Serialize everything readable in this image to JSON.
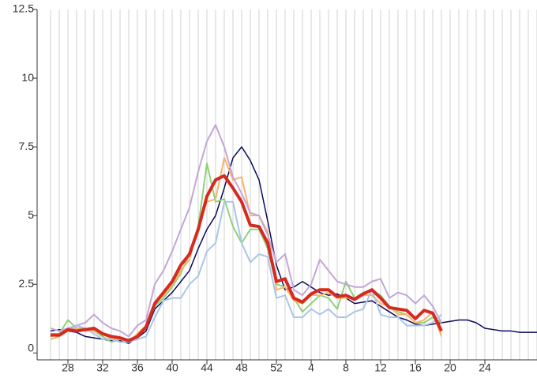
{
  "chart_data": {
    "type": "line",
    "categories": [
      null,
      null,
      28,
      null,
      null,
      null,
      32,
      null,
      null,
      null,
      36,
      null,
      null,
      null,
      40,
      null,
      null,
      null,
      44,
      null,
      null,
      null,
      48,
      null,
      null,
      null,
      52,
      null,
      null,
      null,
      4,
      null,
      null,
      null,
      8,
      null,
      null,
      null,
      12,
      null,
      null,
      null,
      16,
      null,
      null,
      null,
      20,
      null,
      null,
      null,
      24,
      null,
      null,
      null,
      null,
      null,
      null
    ],
    "ylim": [
      -0.25,
      12.5
    ],
    "yticks": [
      0,
      {
        "value": 2.5,
        "label": "2.5"
      },
      5,
      {
        "value": 7.5,
        "label": "7.5"
      },
      10,
      {
        "value": 12.5,
        "label": "12.5"
      }
    ],
    "grid": true,
    "series": [
      {
        "color": "#0a0a5c",
        "width": 1.5,
        "values": [
          0.8,
          0.85,
          0.8,
          0.75,
          0.6,
          0.55,
          0.5,
          0.45,
          0.45,
          0.35,
          0.55,
          0.8,
          1.6,
          1.9,
          2.2,
          2.6,
          3.0,
          3.8,
          4.5,
          5.0,
          6.0,
          7.1,
          7.5,
          7.0,
          6.3,
          4.8,
          3.2,
          2.3,
          2.4,
          2.6,
          2.4,
          2.2,
          2.1,
          2.15,
          2.0,
          1.8,
          1.85,
          1.9,
          1.7,
          1.5,
          1.3,
          1.2,
          1.05,
          1.0,
          1.05,
          1.1,
          1.15,
          1.2,
          1.2,
          1.1,
          0.9,
          0.85,
          0.8,
          0.8,
          0.75,
          0.75,
          0.75
        ]
      },
      {
        "color": "#8fd17a",
        "width": 2,
        "values": [
          0.6,
          0.7,
          1.2,
          0.9,
          0.9,
          0.8,
          0.6,
          0.4,
          0.5,
          0.5,
          0.6,
          0.9,
          1.7,
          2.0,
          2.4,
          2.9,
          3.6,
          4.6,
          6.9,
          5.5,
          5.6,
          4.6,
          4.0,
          4.5,
          4.5,
          3.8,
          2.5,
          2.4,
          2.0,
          1.5,
          1.8,
          2.1,
          2.0,
          1.6,
          2.6,
          2.0,
          2.2,
          2.3,
          2.1,
          1.7,
          1.5,
          1.4,
          1.1,
          1.1,
          1.3,
          1.1,
          null,
          null,
          null,
          null,
          null,
          null,
          null,
          null,
          null,
          null,
          null
        ]
      },
      {
        "color": "#fbb36b",
        "width": 2,
        "values": [
          0.5,
          0.6,
          0.8,
          0.9,
          0.8,
          0.8,
          0.7,
          0.5,
          0.5,
          0.4,
          0.7,
          1.0,
          1.8,
          2.1,
          2.5,
          3.0,
          3.4,
          4.6,
          5.5,
          5.6,
          7.1,
          6.3,
          6.4,
          5.0,
          5.0,
          4.4,
          2.3,
          2.4,
          1.9,
          1.8,
          2.1,
          2.1,
          2.2,
          2.0,
          2.0,
          2.0,
          2.1,
          2.1,
          1.8,
          1.7,
          1.4,
          1.4,
          1.1,
          1.2,
          1.5,
          0.6,
          null,
          null,
          null,
          null,
          null,
          null,
          null,
          null,
          null,
          null,
          null
        ]
      },
      {
        "color": "#c4a5d8",
        "width": 2,
        "values": [
          0.9,
          0.8,
          0.9,
          1.0,
          1.1,
          1.4,
          1.1,
          0.9,
          0.8,
          0.6,
          1.0,
          1.2,
          2.5,
          3.0,
          3.7,
          4.5,
          5.3,
          6.6,
          7.7,
          8.3,
          7.5,
          6.4,
          5.8,
          5.1,
          5.0,
          4.3,
          3.3,
          3.6,
          2.3,
          2.1,
          2.5,
          3.4,
          3.0,
          2.6,
          2.5,
          2.4,
          2.4,
          2.6,
          2.7,
          2.0,
          2.2,
          2.1,
          1.8,
          2.1,
          1.7,
          1.1,
          null,
          null,
          null,
          null,
          null,
          null,
          null,
          null,
          null,
          null,
          null
        ]
      },
      {
        "color": "#a9c5e8",
        "width": 2,
        "values": [
          0.7,
          0.7,
          0.8,
          1.0,
          0.9,
          0.7,
          0.5,
          0.5,
          0.4,
          0.4,
          0.5,
          0.6,
          1.3,
          1.9,
          2.0,
          2.0,
          2.5,
          2.8,
          3.7,
          4.0,
          5.5,
          5.5,
          4.0,
          3.3,
          3.6,
          3.5,
          2.0,
          2.1,
          1.3,
          1.3,
          1.6,
          1.4,
          1.6,
          1.3,
          1.3,
          1.5,
          1.6,
          2.3,
          1.4,
          1.3,
          1.3,
          1.0,
          1.0,
          1.0,
          1.1,
          1.4,
          null,
          null,
          null,
          null,
          null,
          null,
          null,
          null,
          null,
          null,
          null
        ]
      },
      {
        "color": "#d42a20",
        "width": 4,
        "values": [
          0.65,
          0.65,
          0.85,
          0.8,
          0.85,
          0.9,
          0.7,
          0.6,
          0.55,
          0.45,
          0.6,
          0.95,
          1.8,
          2.2,
          2.6,
          3.2,
          3.6,
          4.5,
          5.7,
          6.3,
          6.45,
          6.0,
          5.5,
          4.65,
          4.6,
          4.0,
          2.6,
          2.7,
          2.0,
          1.85,
          2.15,
          2.3,
          2.3,
          2.05,
          2.1,
          1.95,
          2.15,
          2.3,
          2.0,
          1.65,
          1.6,
          1.55,
          1.25,
          1.55,
          1.45,
          0.8,
          null,
          null,
          null,
          null,
          null,
          null,
          null,
          null,
          null,
          null,
          null
        ]
      }
    ]
  }
}
